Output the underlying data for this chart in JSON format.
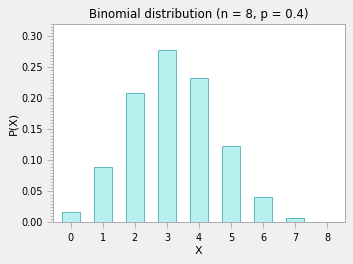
{
  "title": "Binomial distribution (n = 8, p = 0.4)",
  "xlabel": "X",
  "ylabel": "P(X)",
  "x_values": [
    0,
    1,
    2,
    3,
    4,
    5,
    6,
    7,
    8
  ],
  "probabilities": [
    0.01679616,
    0.08957952,
    0.20901888,
    0.27869184,
    0.2322432,
    0.12386304,
    0.04128768,
    0.00786432,
    0.00065536
  ],
  "bar_color": "#b8f0f0",
  "bar_edge_color": "#60b8c0",
  "ylim": [
    0,
    0.32
  ],
  "yticks": [
    0.0,
    0.05,
    0.1,
    0.15,
    0.2,
    0.25,
    0.3
  ],
  "xticks": [
    0,
    1,
    2,
    3,
    4,
    5,
    6,
    7,
    8
  ],
  "plot_bg_color": "#ffffff",
  "fig_bg_color": "#f0f0f0",
  "title_fontsize": 8.5,
  "axis_label_fontsize": 8,
  "tick_fontsize": 7,
  "bar_width": 0.55,
  "minor_tick_interval": 0.005,
  "spine_color": "#aaaaaa",
  "tick_color": "#aaaaaa"
}
